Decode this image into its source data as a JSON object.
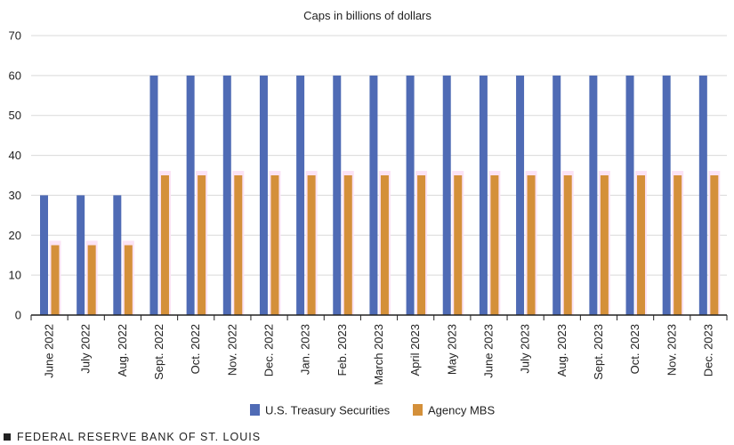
{
  "chart_data": {
    "type": "bar",
    "title": "Caps in billions of dollars",
    "categories": [
      "June 2022",
      "July 2022",
      "Aug. 2022",
      "Sept. 2022",
      "Oct. 2022",
      "Nov. 2022",
      "Dec. 2022",
      "Jan. 2023",
      "Feb. 2023",
      "March 2023",
      "April 2023",
      "May 2023",
      "June 2023",
      "July 2023",
      "Aug. 2023",
      "Sept. 2023",
      "Oct. 2023",
      "Nov. 2023",
      "Dec. 2023"
    ],
    "series": [
      {
        "name": "U.S. Treasury Securities",
        "color": "#4f6bb5",
        "values": [
          30,
          30,
          30,
          60,
          60,
          60,
          60,
          60,
          60,
          60,
          60,
          60,
          60,
          60,
          60,
          60,
          60,
          60,
          60
        ]
      },
      {
        "name": "Agency MBS",
        "color": "#d4903a",
        "values": [
          17.5,
          17.5,
          17.5,
          35,
          35,
          35,
          35,
          35,
          35,
          35,
          35,
          35,
          35,
          35,
          35,
          35,
          35,
          35,
          35
        ]
      }
    ],
    "yticks": [
      0,
      10,
      20,
      30,
      40,
      50,
      60,
      70
    ],
    "ylim": [
      0,
      70
    ],
    "grid": true,
    "legend": "bottom"
  },
  "footer": {
    "source": "FEDERAL RESERVE BANK OF ST. LOUIS"
  }
}
